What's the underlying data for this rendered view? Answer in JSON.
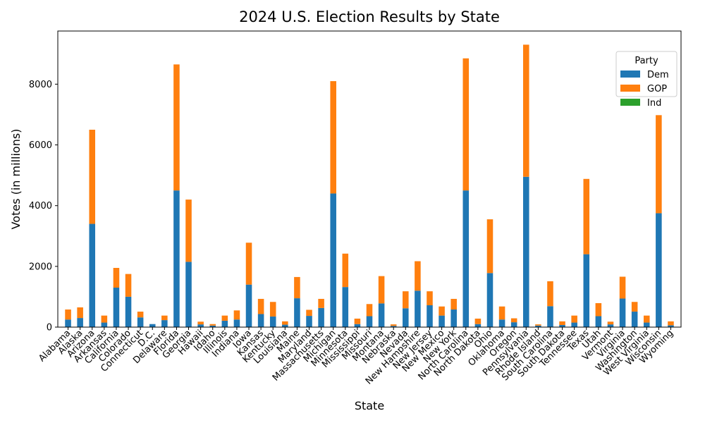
{
  "chart_data": {
    "type": "bar",
    "stacked": true,
    "title": "2024 U.S. Election Results by State",
    "xlabel": "State",
    "ylabel": "Votes (in millions)",
    "ylim": [
      0,
      9750
    ],
    "yticks": [
      0,
      2000,
      4000,
      6000,
      8000
    ],
    "grid": false,
    "legend": {
      "title": "Party",
      "position": "top-right"
    },
    "categories": [
      "Alabama",
      "Alaska",
      "Arizona",
      "Arkansas",
      "California",
      "Colorado",
      "Connecticut",
      "D.C.",
      "Delaware",
      "Florida",
      "Georgia",
      "Hawaii",
      "Idaho",
      "Illinois",
      "Indiana",
      "Iowa",
      "Kansas",
      "Kentucky",
      "Louisiana",
      "Maine",
      "Maryland",
      "Massachusetts",
      "Michigan",
      "Minnesota",
      "Mississippi",
      "Missouri",
      "Montana",
      "Nebraska",
      "Nevada",
      "New Hampshire",
      "New Jersey",
      "New Mexico",
      "New York",
      "North Carolina",
      "North Dakota",
      "Ohio",
      "Oklahoma",
      "Oregon",
      "Pennsylvania",
      "Rhode Island",
      "South Carolina",
      "South Dakota",
      "Tennessee",
      "Texas",
      "Utah",
      "Vermont",
      "Virginia",
      "Washington",
      "West Virginia",
      "Wisconsin",
      "Wyoming"
    ],
    "series": [
      {
        "name": "Dem",
        "color": "#1f77b4",
        "values": [
          250,
          300,
          3400,
          150,
          1300,
          1000,
          320,
          100,
          230,
          4500,
          2150,
          90,
          50,
          210,
          250,
          1400,
          430,
          350,
          80,
          950,
          370,
          630,
          4400,
          1320,
          100,
          360,
          780,
          40,
          620,
          1200,
          720,
          380,
          580,
          4500,
          100,
          1780,
          250,
          160,
          4950,
          50,
          690,
          70,
          150,
          2400,
          360,
          90,
          940,
          510,
          150,
          3750,
          60
        ]
      },
      {
        "name": "GOP",
        "color": "#ff7f0e",
        "values": [
          330,
          350,
          3100,
          230,
          650,
          750,
          190,
          0,
          150,
          4150,
          2050,
          90,
          50,
          170,
          300,
          1380,
          500,
          480,
          110,
          700,
          200,
          300,
          3700,
          1100,
          180,
          400,
          900,
          50,
          560,
          970,
          460,
          300,
          350,
          4350,
          180,
          1770,
          430,
          130,
          4350,
          40,
          820,
          120,
          230,
          2480,
          430,
          90,
          720,
          320,
          230,
          3230,
          130
        ]
      },
      {
        "name": "Ind",
        "color": "#2ca02c",
        "values": [
          0,
          0,
          0,
          0,
          0,
          0,
          0,
          0,
          0,
          0,
          0,
          0,
          0,
          0,
          0,
          0,
          0,
          0,
          0,
          0,
          0,
          0,
          0,
          0,
          0,
          0,
          0,
          0,
          0,
          0,
          0,
          0,
          0,
          0,
          0,
          0,
          0,
          0,
          0,
          0,
          0,
          0,
          0,
          0,
          0,
          0,
          0,
          0,
          0,
          0,
          0
        ]
      }
    ]
  }
}
